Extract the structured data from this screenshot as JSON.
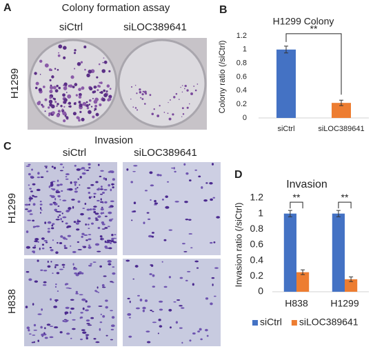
{
  "panels": {
    "A": {
      "label": "A",
      "title": "Colony formation assay",
      "columns": [
        "siCtrl",
        "siLOC389641"
      ],
      "rows": [
        "H1299"
      ]
    },
    "B": {
      "label": "B"
    },
    "C": {
      "label": "C",
      "title": "Invasion",
      "columns": [
        "siCtrl",
        "siLOC389641"
      ],
      "rows": [
        "H1299",
        "H838"
      ]
    },
    "D": {
      "label": "D"
    }
  },
  "chart_data": [
    {
      "type": "bar",
      "title": "H1299 Colony",
      "y_label": "Colony ratio (/siCtrl)",
      "categories": [
        "siCtrl",
        "siLOC389641"
      ],
      "values": [
        1,
        0.22
      ],
      "errors": [
        0.05,
        0.04
      ],
      "colors": [
        "#4472c4",
        "#ed7d31"
      ],
      "ylim": [
        0,
        1.2
      ],
      "yticks": [
        0,
        0.2,
        0.4,
        0.6,
        0.8,
        1,
        1.2
      ],
      "annotations": [
        "**"
      ]
    },
    {
      "type": "grouped_bar",
      "title": "Invasion",
      "y_label": "Invasion ratio (/siCtrl)",
      "categories": [
        "H838",
        "H1299"
      ],
      "series": [
        {
          "name": "siCtrl",
          "color": "#4472c4",
          "values": [
            1,
            1
          ],
          "errors": [
            0.04,
            0.04
          ]
        },
        {
          "name": "siLOC389641",
          "color": "#ed7d31",
          "values": [
            0.25,
            0.16
          ],
          "errors": [
            0.03,
            0.03
          ]
        }
      ],
      "ylim": [
        0,
        1.2
      ],
      "yticks": [
        0,
        0.2,
        0.4,
        0.6,
        0.8,
        1,
        1.2
      ],
      "annotations": [
        "**",
        "**"
      ],
      "legend": "bottom"
    }
  ]
}
